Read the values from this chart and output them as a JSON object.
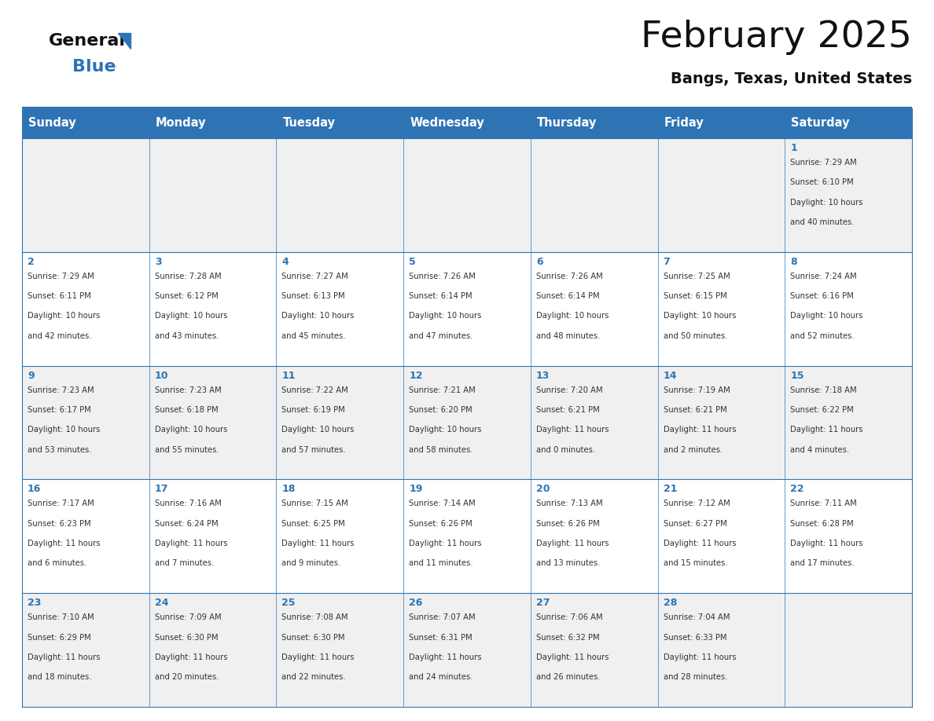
{
  "title": "February 2025",
  "subtitle": "Bangs, Texas, United States",
  "header_color": "#2E74B5",
  "header_text_color": "#FFFFFF",
  "background_color": "#FFFFFF",
  "alt_row_color": "#F0F0F0",
  "day_names": [
    "Sunday",
    "Monday",
    "Tuesday",
    "Wednesday",
    "Thursday",
    "Friday",
    "Saturday"
  ],
  "days": [
    {
      "day": 1,
      "col": 6,
      "row": 0,
      "sunrise": "7:29 AM",
      "sunset": "6:10 PM",
      "daylight": "10 hours and 40 minutes."
    },
    {
      "day": 2,
      "col": 0,
      "row": 1,
      "sunrise": "7:29 AM",
      "sunset": "6:11 PM",
      "daylight": "10 hours and 42 minutes."
    },
    {
      "day": 3,
      "col": 1,
      "row": 1,
      "sunrise": "7:28 AM",
      "sunset": "6:12 PM",
      "daylight": "10 hours and 43 minutes."
    },
    {
      "day": 4,
      "col": 2,
      "row": 1,
      "sunrise": "7:27 AM",
      "sunset": "6:13 PM",
      "daylight": "10 hours and 45 minutes."
    },
    {
      "day": 5,
      "col": 3,
      "row": 1,
      "sunrise": "7:26 AM",
      "sunset": "6:14 PM",
      "daylight": "10 hours and 47 minutes."
    },
    {
      "day": 6,
      "col": 4,
      "row": 1,
      "sunrise": "7:26 AM",
      "sunset": "6:14 PM",
      "daylight": "10 hours and 48 minutes."
    },
    {
      "day": 7,
      "col": 5,
      "row": 1,
      "sunrise": "7:25 AM",
      "sunset": "6:15 PM",
      "daylight": "10 hours and 50 minutes."
    },
    {
      "day": 8,
      "col": 6,
      "row": 1,
      "sunrise": "7:24 AM",
      "sunset": "6:16 PM",
      "daylight": "10 hours and 52 minutes."
    },
    {
      "day": 9,
      "col": 0,
      "row": 2,
      "sunrise": "7:23 AM",
      "sunset": "6:17 PM",
      "daylight": "10 hours and 53 minutes."
    },
    {
      "day": 10,
      "col": 1,
      "row": 2,
      "sunrise": "7:23 AM",
      "sunset": "6:18 PM",
      "daylight": "10 hours and 55 minutes."
    },
    {
      "day": 11,
      "col": 2,
      "row": 2,
      "sunrise": "7:22 AM",
      "sunset": "6:19 PM",
      "daylight": "10 hours and 57 minutes."
    },
    {
      "day": 12,
      "col": 3,
      "row": 2,
      "sunrise": "7:21 AM",
      "sunset": "6:20 PM",
      "daylight": "10 hours and 58 minutes."
    },
    {
      "day": 13,
      "col": 4,
      "row": 2,
      "sunrise": "7:20 AM",
      "sunset": "6:21 PM",
      "daylight": "11 hours and 0 minutes."
    },
    {
      "day": 14,
      "col": 5,
      "row": 2,
      "sunrise": "7:19 AM",
      "sunset": "6:21 PM",
      "daylight": "11 hours and 2 minutes."
    },
    {
      "day": 15,
      "col": 6,
      "row": 2,
      "sunrise": "7:18 AM",
      "sunset": "6:22 PM",
      "daylight": "11 hours and 4 minutes."
    },
    {
      "day": 16,
      "col": 0,
      "row": 3,
      "sunrise": "7:17 AM",
      "sunset": "6:23 PM",
      "daylight": "11 hours and 6 minutes."
    },
    {
      "day": 17,
      "col": 1,
      "row": 3,
      "sunrise": "7:16 AM",
      "sunset": "6:24 PM",
      "daylight": "11 hours and 7 minutes."
    },
    {
      "day": 18,
      "col": 2,
      "row": 3,
      "sunrise": "7:15 AM",
      "sunset": "6:25 PM",
      "daylight": "11 hours and 9 minutes."
    },
    {
      "day": 19,
      "col": 3,
      "row": 3,
      "sunrise": "7:14 AM",
      "sunset": "6:26 PM",
      "daylight": "11 hours and 11 minutes."
    },
    {
      "day": 20,
      "col": 4,
      "row": 3,
      "sunrise": "7:13 AM",
      "sunset": "6:26 PM",
      "daylight": "11 hours and 13 minutes."
    },
    {
      "day": 21,
      "col": 5,
      "row": 3,
      "sunrise": "7:12 AM",
      "sunset": "6:27 PM",
      "daylight": "11 hours and 15 minutes."
    },
    {
      "day": 22,
      "col": 6,
      "row": 3,
      "sunrise": "7:11 AM",
      "sunset": "6:28 PM",
      "daylight": "11 hours and 17 minutes."
    },
    {
      "day": 23,
      "col": 0,
      "row": 4,
      "sunrise": "7:10 AM",
      "sunset": "6:29 PM",
      "daylight": "11 hours and 18 minutes."
    },
    {
      "day": 24,
      "col": 1,
      "row": 4,
      "sunrise": "7:09 AM",
      "sunset": "6:30 PM",
      "daylight": "11 hours and 20 minutes."
    },
    {
      "day": 25,
      "col": 2,
      "row": 4,
      "sunrise": "7:08 AM",
      "sunset": "6:30 PM",
      "daylight": "11 hours and 22 minutes."
    },
    {
      "day": 26,
      "col": 3,
      "row": 4,
      "sunrise": "7:07 AM",
      "sunset": "6:31 PM",
      "daylight": "11 hours and 24 minutes."
    },
    {
      "day": 27,
      "col": 4,
      "row": 4,
      "sunrise": "7:06 AM",
      "sunset": "6:32 PM",
      "daylight": "11 hours and 26 minutes."
    },
    {
      "day": 28,
      "col": 5,
      "row": 4,
      "sunrise": "7:04 AM",
      "sunset": "6:33 PM",
      "daylight": "11 hours and 28 minutes."
    }
  ],
  "num_rows": 5,
  "num_cols": 7,
  "logo_text_general": "General",
  "logo_text_blue": "Blue",
  "logo_triangle_color": "#2E74B5",
  "logo_general_color": "#111111",
  "logo_blue_color": "#2E74B5",
  "title_color": "#111111",
  "subtitle_color": "#111111",
  "cell_text_color": "#333333",
  "cell_day_number_color": "#2E74B5",
  "grid_line_color": "#2E74B5",
  "header_font_size": 10.5,
  "day_number_font_size": 9,
  "cell_text_font_size": 7.2,
  "title_fontsize": 34,
  "subtitle_fontsize": 14
}
